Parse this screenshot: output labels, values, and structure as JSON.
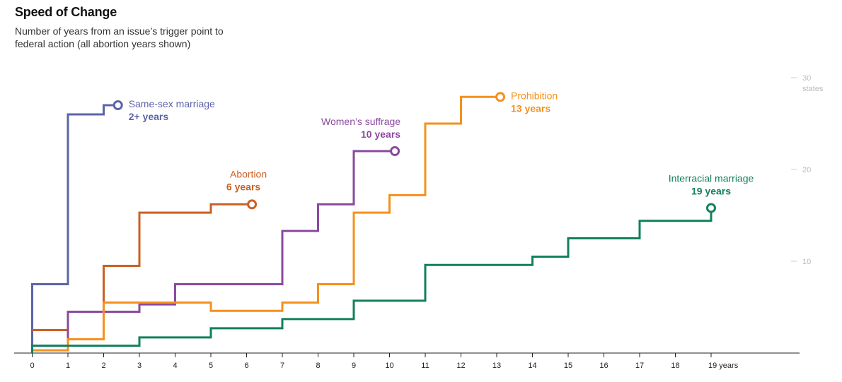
{
  "title": "Speed of Change",
  "subtitle": "Number of years from an issue’s trigger point to federal action (all abortion years shown)",
  "chart_data": {
    "type": "line",
    "step": true,
    "x_ticks": [
      "0",
      "1",
      "2",
      "3",
      "4",
      "5",
      "6",
      "7",
      "8",
      "9",
      "10",
      "11",
      "12",
      "13",
      "14",
      "15",
      "16",
      "17",
      "18",
      "19 years"
    ],
    "y_ticks": [
      {
        "value": 10,
        "label": "10"
      },
      {
        "value": 20,
        "label": "20"
      },
      {
        "value": 30,
        "label": "30"
      }
    ],
    "y_unit_label": "states",
    "xlim": [
      0,
      21.6
    ],
    "ylim": [
      0,
      30
    ],
    "grid": false,
    "series": [
      {
        "name": "Same-sex marriage",
        "years_label": "2+ years",
        "color": "#5b64a9",
        "label_side": "right",
        "points": [
          [
            0,
            0
          ],
          [
            0,
            7.5
          ],
          [
            1,
            7.5
          ],
          [
            1,
            26
          ],
          [
            2,
            26
          ],
          [
            2,
            27
          ],
          [
            2.4,
            27
          ]
        ]
      },
      {
        "name": "Abortion",
        "years_label": "6 years",
        "color": "#cb6023",
        "label_side": "above",
        "points": [
          [
            0,
            2.5
          ],
          [
            1,
            2.5
          ],
          [
            1,
            4.5
          ],
          [
            2,
            4.5
          ],
          [
            2,
            9.5
          ],
          [
            3,
            9.5
          ],
          [
            3,
            15.3
          ],
          [
            5,
            15.3
          ],
          [
            5,
            16.2
          ],
          [
            6.15,
            16.2
          ]
        ]
      },
      {
        "name": "Women’s suffrage",
        "years_label": "10 years",
        "color": "#8a4a9e",
        "label_side": "left",
        "points": [
          [
            0,
            0.8
          ],
          [
            1,
            0.8
          ],
          [
            1,
            4.5
          ],
          [
            3,
            4.5
          ],
          [
            3,
            5.3
          ],
          [
            4,
            5.3
          ],
          [
            4,
            7.5
          ],
          [
            7,
            7.5
          ],
          [
            7,
            13.3
          ],
          [
            8,
            13.3
          ],
          [
            8,
            16.2
          ],
          [
            9,
            16.2
          ],
          [
            9,
            22
          ],
          [
            10.15,
            22
          ]
        ]
      },
      {
        "name": "Prohibition",
        "years_label": "13 years",
        "color": "#f5901e",
        "label_side": "right",
        "points": [
          [
            0,
            0.3
          ],
          [
            1,
            0.3
          ],
          [
            1,
            1.5
          ],
          [
            2,
            1.5
          ],
          [
            2,
            5.5
          ],
          [
            5,
            5.5
          ],
          [
            5,
            4.6
          ],
          [
            7,
            4.6
          ],
          [
            7,
            5.5
          ],
          [
            8,
            5.5
          ],
          [
            8,
            7.5
          ],
          [
            9,
            7.5
          ],
          [
            9,
            15.3
          ],
          [
            10,
            15.3
          ],
          [
            10,
            17.2
          ],
          [
            11,
            17.2
          ],
          [
            11,
            25
          ],
          [
            12,
            25
          ],
          [
            12,
            27.9
          ],
          [
            13.1,
            27.9
          ]
        ]
      },
      {
        "name": "Interracial marriage",
        "years_label": "19 years",
        "color": "#11805e",
        "label_side": "above",
        "points": [
          [
            0,
            0
          ],
          [
            0,
            0.8
          ],
          [
            3,
            0.8
          ],
          [
            3,
            1.7
          ],
          [
            5,
            1.7
          ],
          [
            5,
            2.7
          ],
          [
            7,
            2.7
          ],
          [
            7,
            3.7
          ],
          [
            9,
            3.7
          ],
          [
            9,
            5.7
          ],
          [
            11,
            5.7
          ],
          [
            11,
            9.6
          ],
          [
            14,
            9.6
          ],
          [
            14,
            10.5
          ],
          [
            15,
            10.5
          ],
          [
            15,
            12.5
          ],
          [
            17,
            12.5
          ],
          [
            17,
            14.4
          ],
          [
            19,
            14.4
          ],
          [
            19,
            15.8
          ]
        ]
      }
    ]
  }
}
